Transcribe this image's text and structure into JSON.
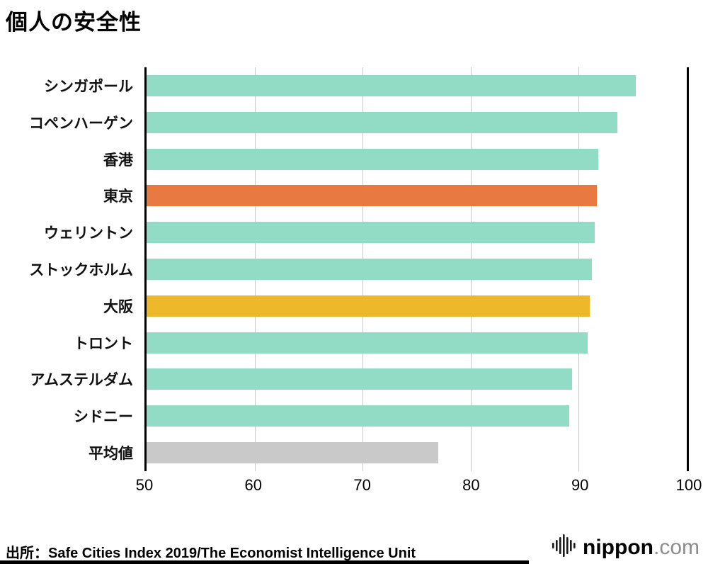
{
  "title": "個人の安全性",
  "source": "出所：Safe Cities Index 2019/The Economist Intelligence Unit",
  "logo": {
    "name": "nippon",
    "tld": ".com",
    "icon": "soundwave-icon"
  },
  "chart_data": {
    "type": "bar",
    "orientation": "horizontal",
    "title": "個人の安全性",
    "categories": [
      "シンガポール",
      "コペンハーゲン",
      "香港",
      "東京",
      "ウェリントン",
      "ストックホルム",
      "大阪",
      "トロント",
      "アムステルダム",
      "シドニー",
      "平均値"
    ],
    "values": [
      95.3,
      93.6,
      91.8,
      91.7,
      91.5,
      91.2,
      91.0,
      90.8,
      89.4,
      89.1,
      77.0
    ],
    "colors": [
      "#92dcc5",
      "#92dcc5",
      "#92dcc5",
      "#e87a41",
      "#92dcc5",
      "#92dcc5",
      "#edb829",
      "#92dcc5",
      "#92dcc5",
      "#92dcc5",
      "#c9c9c9"
    ],
    "highlight_colors": {
      "teal": "#92dcc5",
      "orange": "#e87a41",
      "yellow": "#edb829",
      "gray": "#c9c9c9"
    },
    "xlabel": "",
    "ylabel": "",
    "xlim": [
      50,
      100
    ],
    "xticks": [
      50,
      60,
      70,
      80,
      90,
      100
    ],
    "grid": "vertical-light-gray",
    "legend": "none"
  }
}
